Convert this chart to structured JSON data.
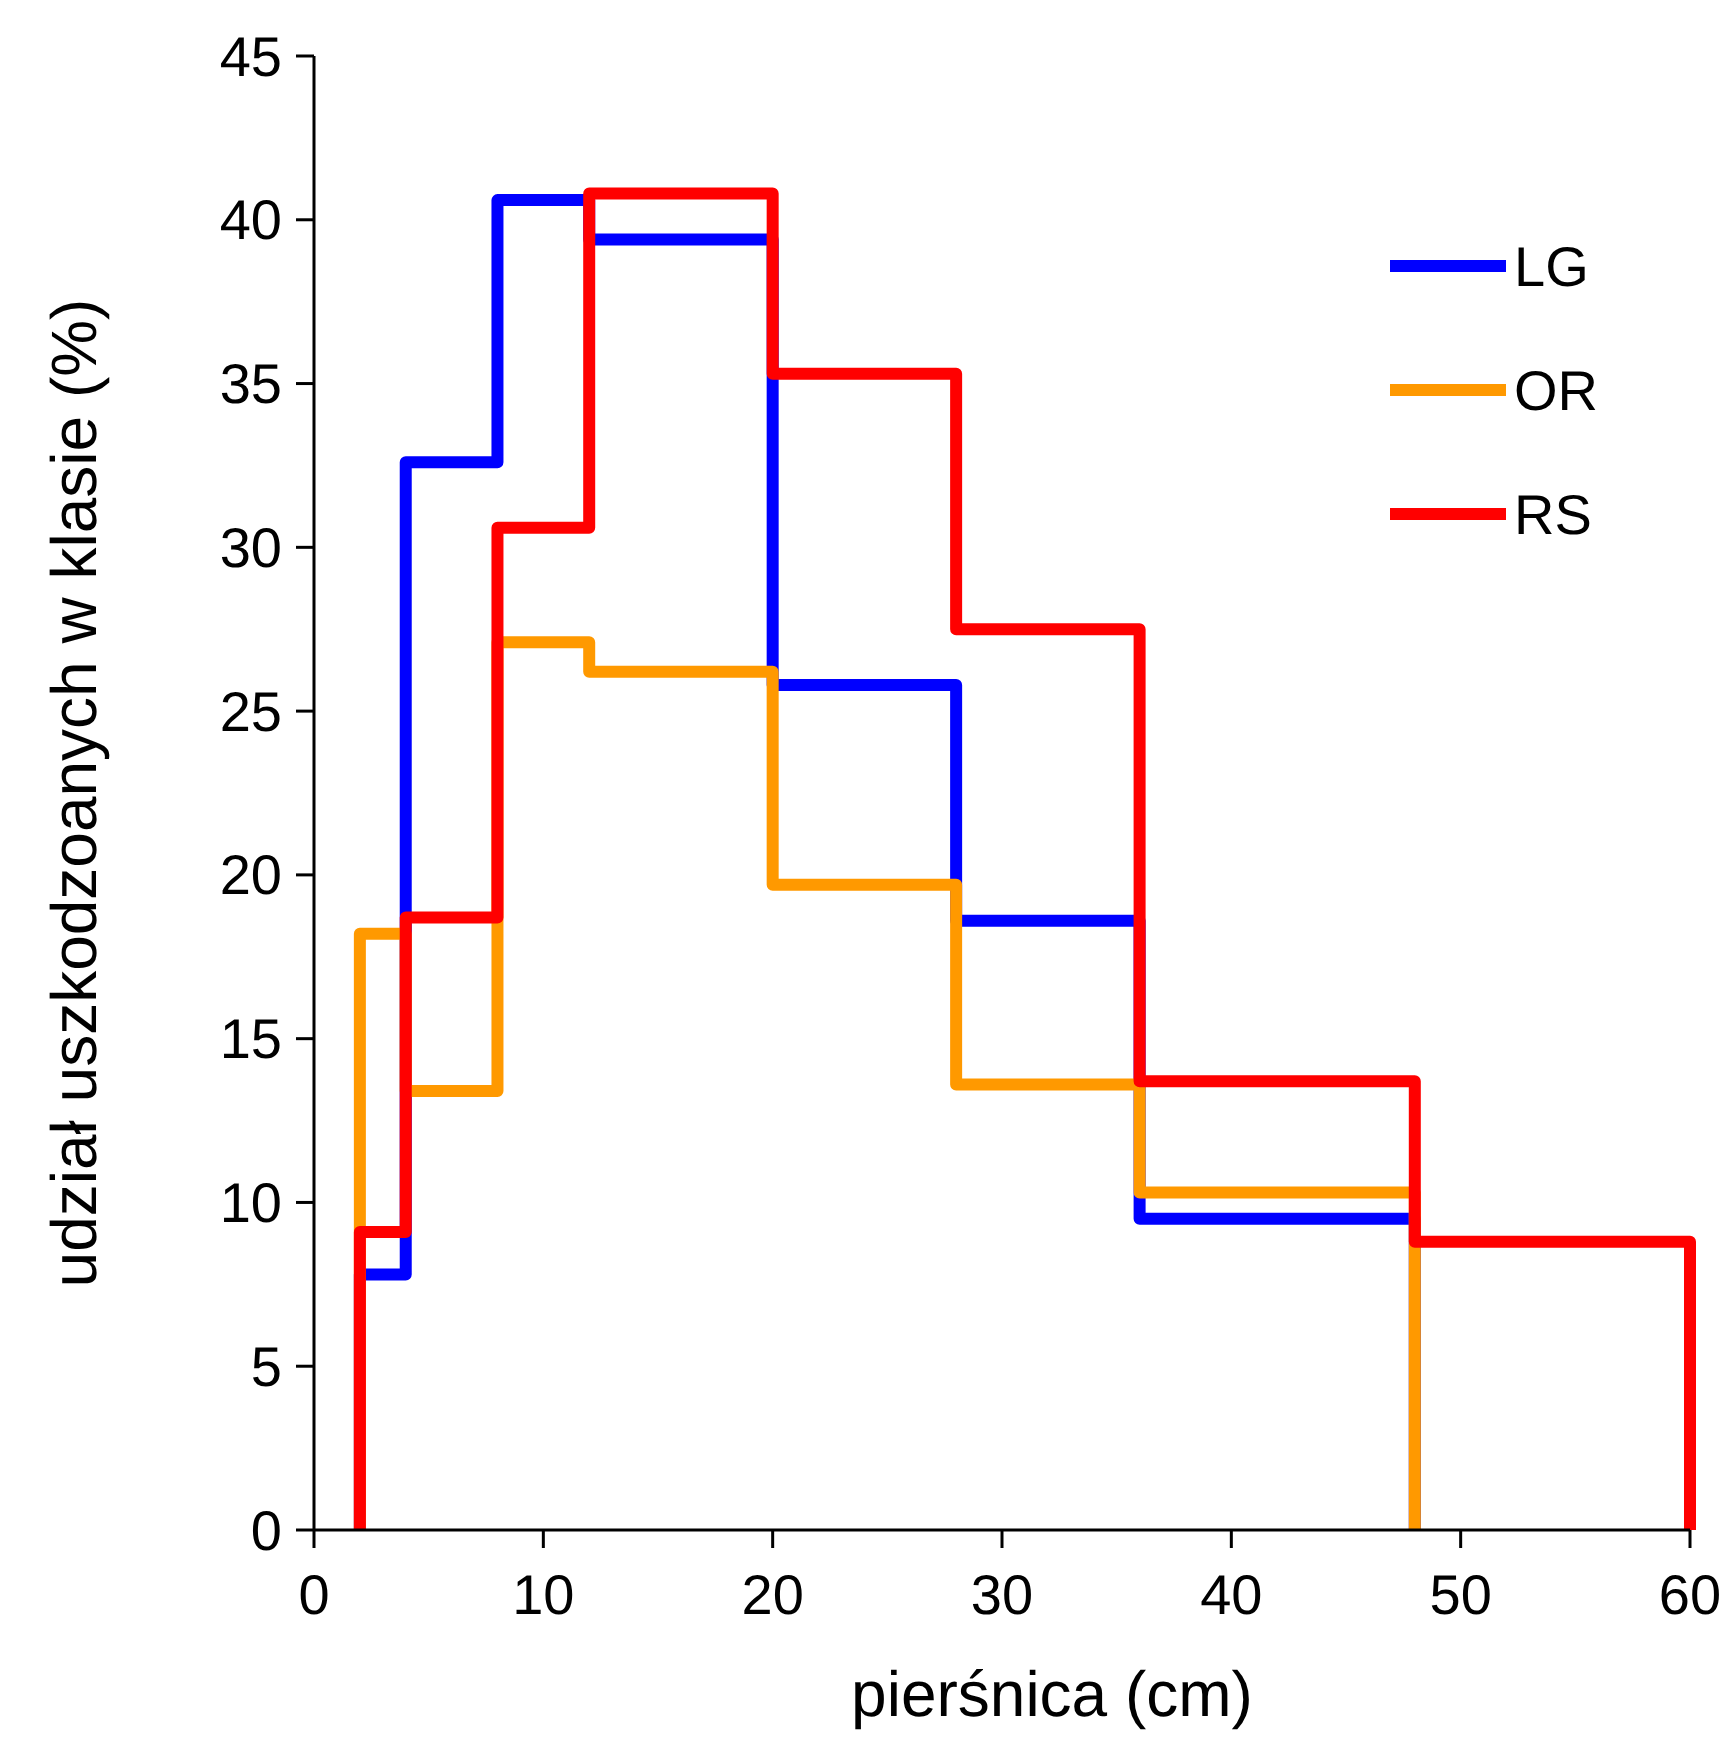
{
  "chart_data": {
    "type": "step",
    "xlabel": "pierśnica (cm)",
    "ylabel": "udział uszkodzoanych w klasie (%)",
    "xlim": [
      0,
      60
    ],
    "xticks": [
      0,
      10,
      20,
      30,
      40,
      50,
      60
    ],
    "ylim": [
      0,
      45
    ],
    "yticks": [
      0,
      5,
      10,
      15,
      20,
      25,
      30,
      35,
      40,
      45
    ],
    "grid": false,
    "legend": "top right",
    "series": [
      {
        "name": "LG",
        "color": "#0000ff",
        "x": [
          2,
          2,
          4,
          8,
          12,
          20,
          28,
          36,
          48
        ],
        "values": [
          0,
          7.8,
          32.6,
          40.6,
          39.4,
          25.8,
          18.6,
          9.5,
          0
        ]
      },
      {
        "name": "OR",
        "color": "#ff9900",
        "x": [
          2,
          2,
          4,
          8,
          12,
          20,
          28,
          36,
          48
        ],
        "values": [
          0,
          18.2,
          13.4,
          27.1,
          26.2,
          19.7,
          13.6,
          10.3,
          0
        ]
      },
      {
        "name": "RS",
        "color": "#ff0000",
        "x": [
          2,
          2,
          4,
          8,
          12,
          20,
          28,
          36,
          48,
          60
        ],
        "values": [
          0,
          9.1,
          18.7,
          30.6,
          40.8,
          35.3,
          27.5,
          13.7,
          8.8,
          0
        ]
      }
    ]
  }
}
